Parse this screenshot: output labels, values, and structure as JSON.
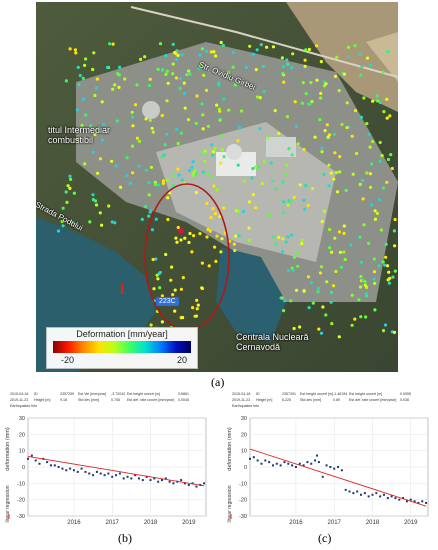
{
  "figure": {
    "panel_a": {
      "caption": "(a)",
      "labels": {
        "left_line1": "titul Intermediar",
        "left_line2": "combustibil",
        "road_top": "Str. Ovidiu Girbei",
        "road_left": "Strada Podului",
        "bottom_line1": "Centrala Nucleară",
        "bottom_line2": "Cernavodă",
        "marker": "1",
        "road_sign": "223C"
      },
      "legend": {
        "title": "Deformation [mm/year]",
        "min": "-20",
        "max": "20",
        "colors": [
          "#8b0000",
          "#ff1a00",
          "#ff8a00",
          "#ffe000",
          "#b8ff1a",
          "#40ff60",
          "#00e0d0",
          "#0080ff",
          "#0010c0",
          "#000060"
        ]
      },
      "ellipse_color": "#b01818"
    },
    "panel_b": {
      "caption": "(b)",
      "header": {
        "r1c1": "2015-04-16",
        "r1c2": "ID",
        "r1c3": "2357259",
        "r1c4": "Est Vel [mm/year]",
        "r1c5": "-3.72042",
        "r1c6": "Est height uncert [m]",
        "r1c7": "0.6861",
        "r2c1": "2019-11-23",
        "r2c2": "Height [m]",
        "r2c3": "9.18",
        "r2c4": "Std dev [mm]",
        "r2c5": "0.755",
        "r2c6": "Est def. rate uncert [mm/year]",
        "r2c7": "0.0045",
        "r3": "Earthquakes Info"
      }
    },
    "panel_c": {
      "caption": "(c)",
      "header": {
        "r1c1": "2015-04-16",
        "r1c2": "ID",
        "r1c3": "2357391",
        "r1c4": "Est height uncert [m]",
        "r1c5": "-1.46154",
        "r1c6": "Est height uncert [m]",
        "r1c7": "0.0955",
        "r2c1": "2019-11-23",
        "r2c2": "Height [m]",
        "r2c3": "6.225",
        "r2c4": "Std dev [mm]",
        "r2c5": "0.89",
        "r2c6": "Est def. rate uncert [mm/year]",
        "r2c7": "0.036",
        "r3": "Earthquakes Info"
      }
    }
  },
  "chart_data": [
    {
      "type": "scatter",
      "ylabel": "deformation (mm)",
      "legend_label": "linear regression",
      "xlim": [
        2015.3,
        2019.95
      ],
      "ylim": [
        -30,
        30
      ],
      "yticks": [
        -30,
        -20,
        -10,
        0,
        10,
        20,
        30
      ],
      "xticks": [
        "2016",
        "2017",
        "2018",
        "2019"
      ],
      "point_color": "#1a3a6e",
      "regression_color": "#e02020",
      "regression": {
        "x": [
          2015.3,
          2019.9
        ],
        "y": [
          6.5,
          -11.5
        ]
      },
      "points": {
        "x": [
          2015.3,
          2015.4,
          2015.5,
          2015.6,
          2015.7,
          2015.8,
          2015.9,
          2016.0,
          2016.1,
          2016.2,
          2016.3,
          2016.4,
          2016.5,
          2016.6,
          2016.7,
          2016.8,
          2016.9,
          2017.0,
          2017.1,
          2017.2,
          2017.3,
          2017.4,
          2017.5,
          2017.6,
          2017.7,
          2017.8,
          2017.9,
          2018.0,
          2018.1,
          2018.2,
          2018.3,
          2018.4,
          2018.5,
          2018.6,
          2018.7,
          2018.8,
          2018.9,
          2019.0,
          2019.1,
          2019.2,
          2019.3,
          2019.4,
          2019.5,
          2019.6,
          2019.7,
          2019.8,
          2019.9
        ],
        "y": [
          5,
          7,
          4,
          2,
          5,
          3,
          1,
          1,
          0,
          -1,
          -2,
          -1,
          -2,
          -3,
          -1,
          -3,
          -4,
          -5,
          -3,
          -4,
          -5,
          -4,
          -6,
          -5,
          -4,
          -7,
          -6,
          -7,
          -5,
          -7,
          -8,
          -6,
          -8,
          -7,
          -9,
          -8,
          -7,
          -9,
          -10,
          -9,
          -8,
          -10,
          -11,
          -10,
          -12,
          -11,
          -10
        ]
      }
    },
    {
      "type": "scatter",
      "ylabel": "deformation (mm)",
      "legend_label": "linear regression",
      "xlim": [
        2015.3,
        2019.95
      ],
      "ylim": [
        -30,
        30
      ],
      "yticks": [
        -30,
        -20,
        -10,
        0,
        10,
        20,
        30
      ],
      "xticks": [
        "2016",
        "2017",
        "2018",
        "2019"
      ],
      "point_color": "#1a3a6e",
      "regression_color": "#e02020",
      "regression": {
        "x": [
          2015.3,
          2019.9
        ],
        "y": [
          11,
          -24
        ]
      },
      "points": {
        "x": [
          2015.3,
          2015.4,
          2015.5,
          2015.6,
          2015.7,
          2015.8,
          2015.9,
          2016.0,
          2016.1,
          2016.2,
          2016.3,
          2016.4,
          2016.5,
          2016.6,
          2016.7,
          2016.8,
          2016.9,
          2017.0,
          2017.05,
          2017.1,
          2017.2,
          2017.3,
          2017.4,
          2017.5,
          2017.6,
          2017.7,
          2017.8,
          2017.9,
          2018.0,
          2018.1,
          2018.2,
          2018.3,
          2018.4,
          2018.5,
          2018.6,
          2018.7,
          2018.8,
          2018.9,
          2019.0,
          2019.1,
          2019.2,
          2019.3,
          2019.4,
          2019.5,
          2019.6,
          2019.7,
          2019.8,
          2019.9
        ],
        "y": [
          5,
          6,
          4,
          2,
          4,
          3,
          1,
          2,
          1,
          3,
          2,
          1,
          0,
          2,
          1,
          3,
          2,
          4,
          7,
          3,
          -6,
          1,
          0,
          -1,
          0,
          -2,
          -14,
          -15,
          -16,
          -15,
          -17,
          -16,
          -18,
          -17,
          -16,
          -18,
          -17,
          -19,
          -18,
          -19,
          -20,
          -19,
          -21,
          -20,
          -21,
          -22,
          -21,
          -22
        ]
      }
    }
  ]
}
